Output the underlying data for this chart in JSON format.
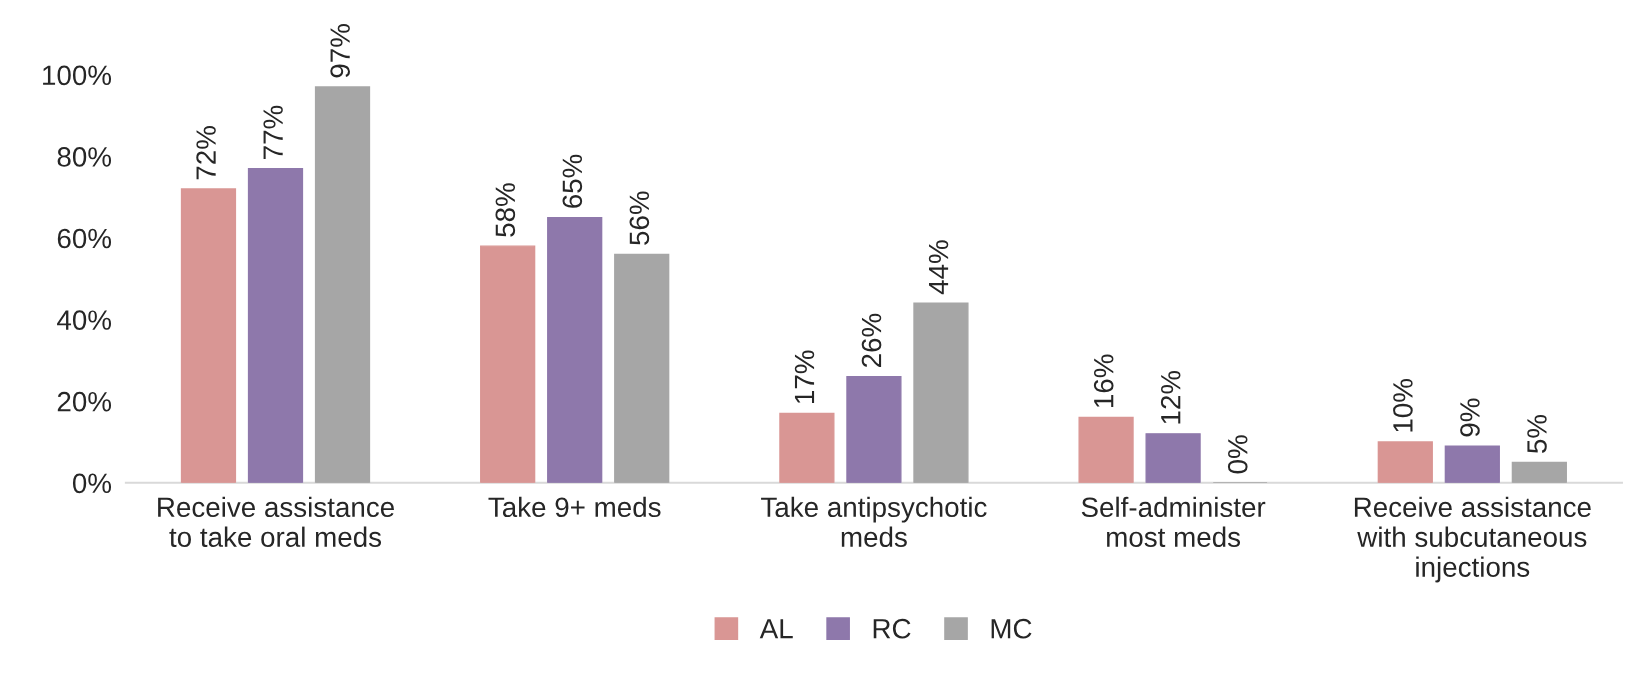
{
  "chart_data": {
    "type": "bar",
    "categories": [
      "Receive assistance\nto take oral meds",
      "Take 9+ meds",
      "Take antipsychotic\nmeds",
      "Self-administer\nmost meds",
      "Receive assistance\nwith subcutaneous\ninjections"
    ],
    "series": [
      {
        "name": "AL",
        "color": "#d99694",
        "values": [
          72,
          58,
          17,
          16,
          10
        ],
        "value_labels": [
          "72%",
          "58%",
          "17%",
          "16%",
          "10%"
        ]
      },
      {
        "name": "RC",
        "color": "#8e78ab",
        "values": [
          77,
          65,
          26,
          12,
          9
        ],
        "value_labels": [
          "77%",
          "65%",
          "26%",
          "12%",
          "9%"
        ]
      },
      {
        "name": "MC",
        "color": "#a6a6a6",
        "values": [
          97,
          56,
          44,
          0,
          5
        ],
        "value_labels": [
          "97%",
          "56%",
          "44%",
          "0%",
          "5%"
        ]
      }
    ],
    "ylim": [
      0,
      100
    ],
    "yticks": [
      {
        "value": 0,
        "label": "0%"
      },
      {
        "value": 20,
        "label": "20%"
      },
      {
        "value": 40,
        "label": "40%"
      },
      {
        "value": 60,
        "label": "60%"
      },
      {
        "value": 80,
        "label": "80%"
      },
      {
        "value": 100,
        "label": "100%"
      }
    ],
    "grid": false,
    "legend": "bottom"
  }
}
